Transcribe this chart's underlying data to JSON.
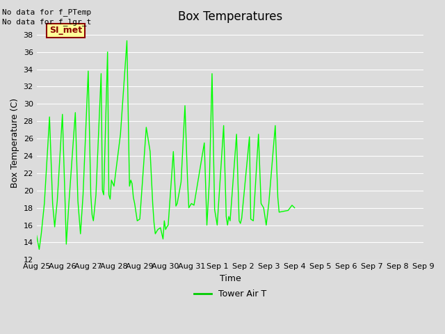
{
  "title": "Box Temperatures",
  "ylabel": "Box Temperature (C)",
  "xlabel": "Time",
  "text_no_data_1": "No data for f_PTemp",
  "text_no_data_2": "No data for f_lgr_t",
  "si_met_label": "SI_met",
  "legend_label": "Tower Air T",
  "line_color": "#00FF00",
  "legend_line_color": "#00CC00",
  "bg_color": "#DCDCDC",
  "plot_bg_color": "#DCDCDC",
  "ylim": [
    12,
    39
  ],
  "yticks": [
    12,
    14,
    16,
    18,
    20,
    22,
    24,
    26,
    28,
    30,
    32,
    34,
    36,
    38
  ],
  "x_labels": [
    "Aug 25",
    "Aug 26",
    "Aug 27",
    "Aug 28",
    "Aug 29",
    "Aug 30",
    "Aug 31",
    "Sep 1",
    "Sep 2",
    "Sep 3",
    "Sep 4",
    "Sep 5",
    "Sep 6",
    "Sep 7",
    "Sep 8",
    "Sep 9"
  ],
  "y_data": [
    14.8,
    13.2,
    15.0,
    18.5,
    28.5,
    18.5,
    15.8,
    18.8,
    28.8,
    19.0,
    13.8,
    18.5,
    29.0,
    18.8,
    15.0,
    19.5,
    33.8,
    19.5,
    17.2,
    16.5,
    19.5,
    33.5,
    20.0,
    19.5,
    36.0,
    19.5,
    19.0,
    21.2,
    20.5,
    26.5,
    37.3,
    20.5,
    21.2,
    20.8,
    19.2,
    18.5,
    16.5,
    16.7,
    27.3,
    24.5,
    18.5,
    16.3,
    15.0,
    15.5,
    15.7,
    14.4,
    16.5,
    15.5,
    15.8,
    16.0,
    24.5,
    18.2,
    18.5,
    21.0,
    29.8,
    21.2,
    18.0,
    18.5,
    18.3,
    21.0,
    25.5,
    16.0,
    21.3,
    33.5,
    17.8,
    16.0,
    27.5,
    17.0,
    16.0,
    17.0,
    16.5,
    26.5,
    16.5,
    16.2,
    16.8,
    26.2,
    16.7,
    16.5,
    26.5,
    18.5,
    18.0,
    16.0,
    18.5,
    27.5,
    19.2,
    17.5,
    17.7,
    18.3,
    18.0
  ],
  "x_data_normalized": [
    0.0,
    0.1,
    0.18,
    0.3,
    0.5,
    0.62,
    0.7,
    0.8,
    1.0,
    1.1,
    1.15,
    1.25,
    1.5,
    1.6,
    1.7,
    1.8,
    2.0,
    2.1,
    2.15,
    2.2,
    2.3,
    2.5,
    2.55,
    2.6,
    2.75,
    2.8,
    2.85,
    2.9,
    3.0,
    3.25,
    3.5,
    3.6,
    3.65,
    3.7,
    3.75,
    3.8,
    3.9,
    4.0,
    4.25,
    4.4,
    4.5,
    4.55,
    4.6,
    4.7,
    4.8,
    4.9,
    4.95,
    5.0,
    5.05,
    5.1,
    5.3,
    5.4,
    5.45,
    5.6,
    5.75,
    5.85,
    5.9,
    6.0,
    6.1,
    6.25,
    6.5,
    6.6,
    6.7,
    6.8,
    6.9,
    7.0,
    7.25,
    7.35,
    7.4,
    7.45,
    7.5,
    7.75,
    7.85,
    7.9,
    7.95,
    8.25,
    8.3,
    8.4,
    8.6,
    8.7,
    8.8,
    8.9,
    9.0,
    9.25,
    9.35,
    9.4,
    9.75,
    9.9,
    10.0
  ]
}
